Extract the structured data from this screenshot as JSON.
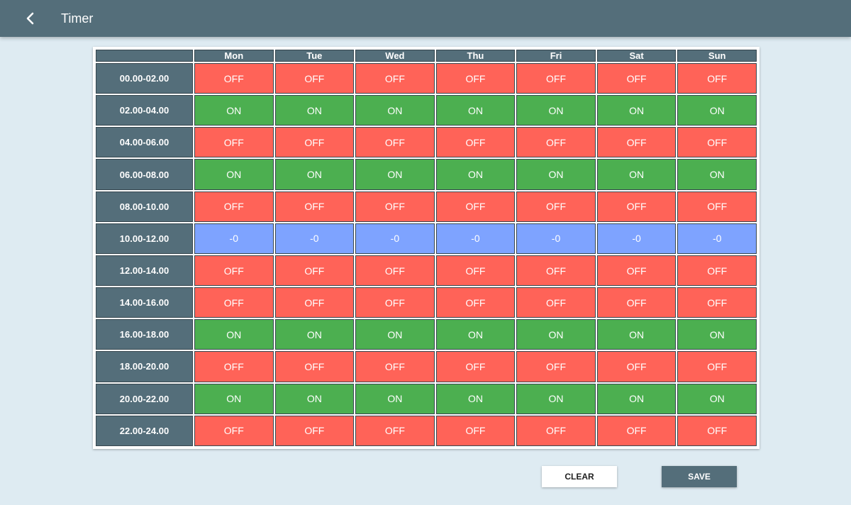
{
  "header": {
    "title": "Timer",
    "back_icon": "chevron-left-icon"
  },
  "colors": {
    "header": "#546e7a",
    "off": "#ff6358",
    "on": "#4caf50",
    "zero": "#7ea3ff",
    "background": "#deebf2"
  },
  "schedule": {
    "days": [
      "Mon",
      "Tue",
      "Wed",
      "Thu",
      "Fri",
      "Sat",
      "Sun"
    ],
    "slots": [
      {
        "label": "00.00-02.00",
        "value": "OFF"
      },
      {
        "label": "02.00-04.00",
        "value": "ON"
      },
      {
        "label": "04.00-06.00",
        "value": "OFF"
      },
      {
        "label": "06.00-08.00",
        "value": "ON"
      },
      {
        "label": "08.00-10.00",
        "value": "OFF"
      },
      {
        "label": "10.00-12.00",
        "value": "-0"
      },
      {
        "label": "12.00-14.00",
        "value": "OFF"
      },
      {
        "label": "14.00-16.00",
        "value": "OFF"
      },
      {
        "label": "16.00-18.00",
        "value": "ON"
      },
      {
        "label": "18.00-20.00",
        "value": "OFF"
      },
      {
        "label": "20.00-22.00",
        "value": "ON"
      },
      {
        "label": "22.00-24.00",
        "value": "OFF"
      }
    ]
  },
  "actions": {
    "clear_label": "CLEAR",
    "save_label": "SAVE"
  }
}
